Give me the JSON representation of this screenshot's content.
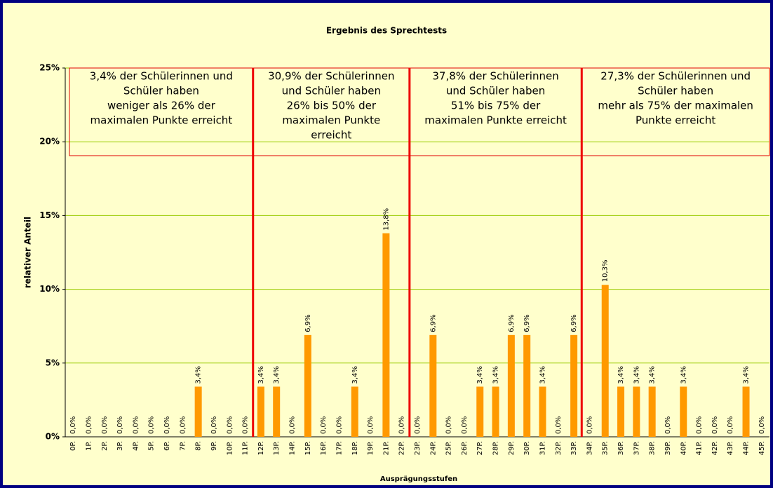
{
  "chart_data": {
    "type": "bar",
    "title": "Ergebnis des Sprechtests",
    "y_label": "relativer Anteil",
    "x_label": "Ausprägungsstufen",
    "categories": [
      "0P.",
      "1P.",
      "2P.",
      "3P.",
      "4P.",
      "5P.",
      "6P.",
      "7P.",
      "8P.",
      "9P.",
      "10P.",
      "11P.",
      "12P.",
      "13P.",
      "14P.",
      "15P.",
      "16P.",
      "17P.",
      "18P.",
      "19P.",
      "21P.",
      "22P.",
      "23P.",
      "24P.",
      "25P.",
      "26P.",
      "27P.",
      "28P.",
      "29P.",
      "30P.",
      "31P.",
      "32P.",
      "33P.",
      "34P.",
      "35P.",
      "36P.",
      "37P.",
      "38P.",
      "39P.",
      "40P.",
      "41P.",
      "42P.",
      "43P.",
      "44P.",
      "45P."
    ],
    "values": [
      0,
      0,
      0,
      0,
      0,
      0,
      0,
      0,
      3.4,
      0,
      0,
      0,
      3.4,
      3.4,
      0,
      6.9,
      0,
      0,
      3.4,
      0,
      13.8,
      0,
      0,
      6.9,
      0,
      0,
      3.4,
      3.4,
      6.9,
      6.9,
      3.4,
      0,
      6.9,
      0,
      10.3,
      3.4,
      3.4,
      3.4,
      0,
      3.4,
      0,
      0,
      0,
      3.4,
      0
    ],
    "value_labels": [
      "0,0%",
      "0,0%",
      "0,0%",
      "0,0%",
      "0,0%",
      "0,0%",
      "0,0%",
      "0,0%",
      "3,4%",
      "0,0%",
      "0,0%",
      "0,0%",
      "3,4%",
      "3,4%",
      "0,0%",
      "6,9%",
      "0,0%",
      "0,0%",
      "3,4%",
      "0,0%",
      "13,8%",
      "0,0%",
      "0,0%",
      "6,9%",
      "0,0%",
      "0,0%",
      "3,4%",
      "3,4%",
      "6,9%",
      "6,9%",
      "3,4%",
      "0,0%",
      "6,9%",
      "0,0%",
      "10,3%",
      "3,4%",
      "3,4%",
      "3,4%",
      "0,0%",
      "3,4%",
      "0,0%",
      "0,0%",
      "0,0%",
      "3,4%",
      "0,0%"
    ],
    "color": "#ff9900",
    "ylim": [
      0,
      25
    ],
    "yticks": [
      {
        "value": 0,
        "label": "0%"
      },
      {
        "value": 5,
        "label": "5%"
      },
      {
        "value": 10,
        "label": "10%"
      },
      {
        "value": 15,
        "label": "15%"
      },
      {
        "value": 20,
        "label": "20%"
      },
      {
        "value": 25,
        "label": "25%"
      }
    ],
    "grid": true,
    "annotations": [
      [
        "3,4% der Schülerinnen und",
        "Schüler haben",
        "weniger als 26% der",
        "maximalen Punkte erreicht"
      ],
      [
        "30,9% der Schülerinnen",
        "und Schüler haben",
        "26% bis 50% der",
        "maximalen Punkte",
        "erreicht"
      ],
      [
        "37,8% der Schülerinnen",
        "und Schüler haben",
        "51% bis 75% der",
        "maximalen Punkte erreicht"
      ],
      [
        "27,3% der Schülerinnen und",
        "Schüler haben",
        "mehr als 75% der maximalen",
        "Punkte erreicht"
      ]
    ]
  }
}
